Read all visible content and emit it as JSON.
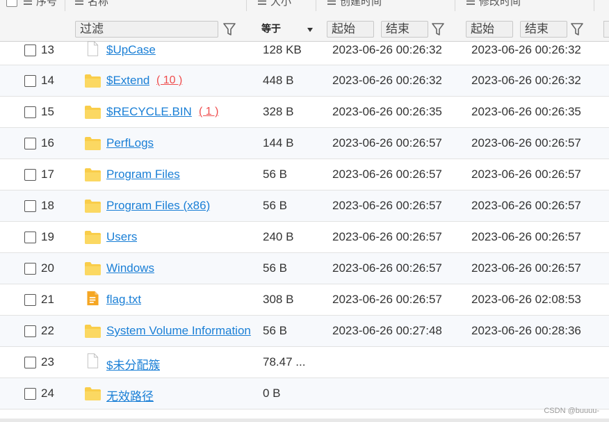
{
  "header": {
    "col_index": "序号",
    "col_name": "名称",
    "col_size": "大小",
    "col_created": "创建时间",
    "col_modified": "修改时间"
  },
  "filters": {
    "name_filter": "过滤",
    "size_op": "等于",
    "created_start": "起始",
    "created_end": "结束",
    "modified_start": "起始",
    "modified_end": "结束"
  },
  "rows": [
    {
      "index": "13",
      "icon": "file-icon",
      "name": "$UpCase",
      "count": "",
      "size": "128 KB",
      "created": "2023-06-26 00:26:32",
      "modified": "2023-06-26 00:26:32"
    },
    {
      "index": "14",
      "icon": "folder-icon",
      "name": "$Extend",
      "count": "( 10 )",
      "size": "448 B",
      "created": "2023-06-26 00:26:32",
      "modified": "2023-06-26 00:26:32"
    },
    {
      "index": "15",
      "icon": "folder-icon",
      "name": "$RECYCLE.BIN",
      "count": "( 1 )",
      "size": "328 B",
      "created": "2023-06-26 00:26:35",
      "modified": "2023-06-26 00:26:35"
    },
    {
      "index": "16",
      "icon": "folder-icon",
      "name": "PerfLogs",
      "count": "",
      "size": "144 B",
      "created": "2023-06-26 00:26:57",
      "modified": "2023-06-26 00:26:57"
    },
    {
      "index": "17",
      "icon": "folder-icon",
      "name": "Program Files",
      "count": "",
      "size": "56 B",
      "created": "2023-06-26 00:26:57",
      "modified": "2023-06-26 00:26:57"
    },
    {
      "index": "18",
      "icon": "folder-icon",
      "name": "Program Files (x86)",
      "count": "",
      "size": "56 B",
      "created": "2023-06-26 00:26:57",
      "modified": "2023-06-26 00:26:57"
    },
    {
      "index": "19",
      "icon": "folder-icon",
      "name": "Users",
      "count": "",
      "size": "240 B",
      "created": "2023-06-26 00:26:57",
      "modified": "2023-06-26 00:26:57"
    },
    {
      "index": "20",
      "icon": "folder-icon",
      "name": "Windows",
      "count": "",
      "size": "56 B",
      "created": "2023-06-26 00:26:57",
      "modified": "2023-06-26 00:26:57"
    },
    {
      "index": "21",
      "icon": "text-file-icon",
      "name": "flag.txt",
      "count": "",
      "size": "308 B",
      "created": "2023-06-26 00:26:57",
      "modified": "2023-06-26 02:08:53"
    },
    {
      "index": "22",
      "icon": "folder-icon",
      "name": "System Volume Information",
      "count": "",
      "size": "56 B",
      "created": "2023-06-26 00:27:48",
      "modified": "2023-06-26 00:28:36"
    },
    {
      "index": "23",
      "icon": "file-icon",
      "name": "$未分配簇",
      "count": "",
      "size": "78.47 ...",
      "created": "",
      "modified": ""
    },
    {
      "index": "24",
      "icon": "folder-icon",
      "name": "无效路径",
      "count": "",
      "size": "0 B",
      "created": "",
      "modified": ""
    }
  ],
  "watermark": "CSDN @buuuu-",
  "colors": {
    "link": "#1a7fd6",
    "count": "#ef4d4d",
    "folder": "#f9cd4a",
    "text_file": "#f5a623"
  }
}
